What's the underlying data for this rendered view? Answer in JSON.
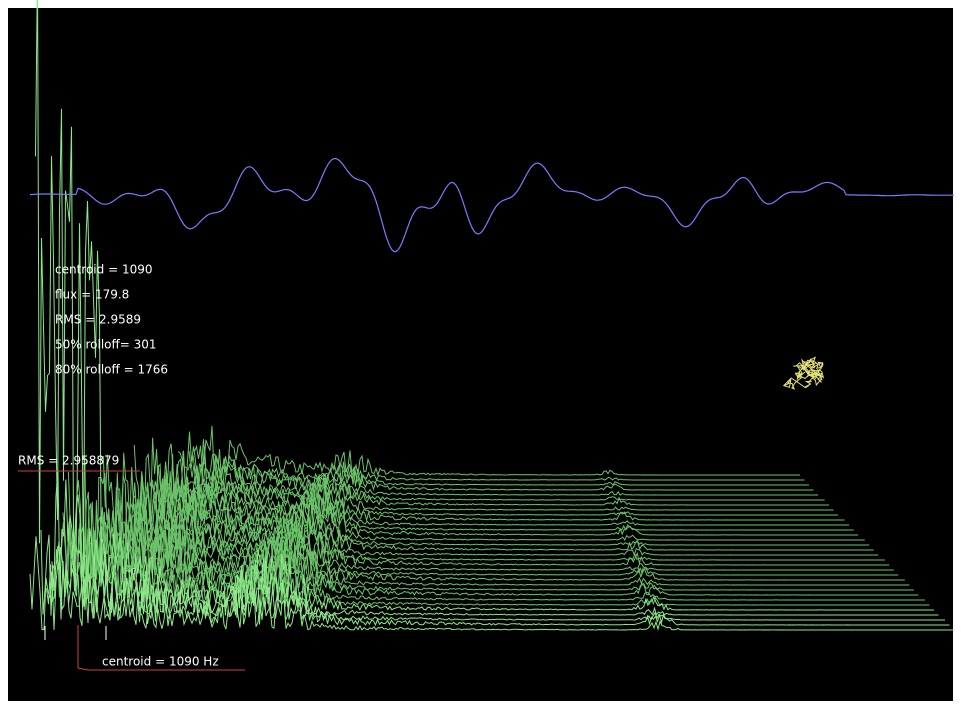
{
  "stats": [
    "centroid = 1090",
    "flux = 179.8",
    "RMS = 2.9589",
    "50% rolloff= 301",
    "80% rolloff = 1766"
  ],
  "rms_marker": "RMS = 2.958879",
  "centroid_marker": "centroid = 1090 Hz"
}
